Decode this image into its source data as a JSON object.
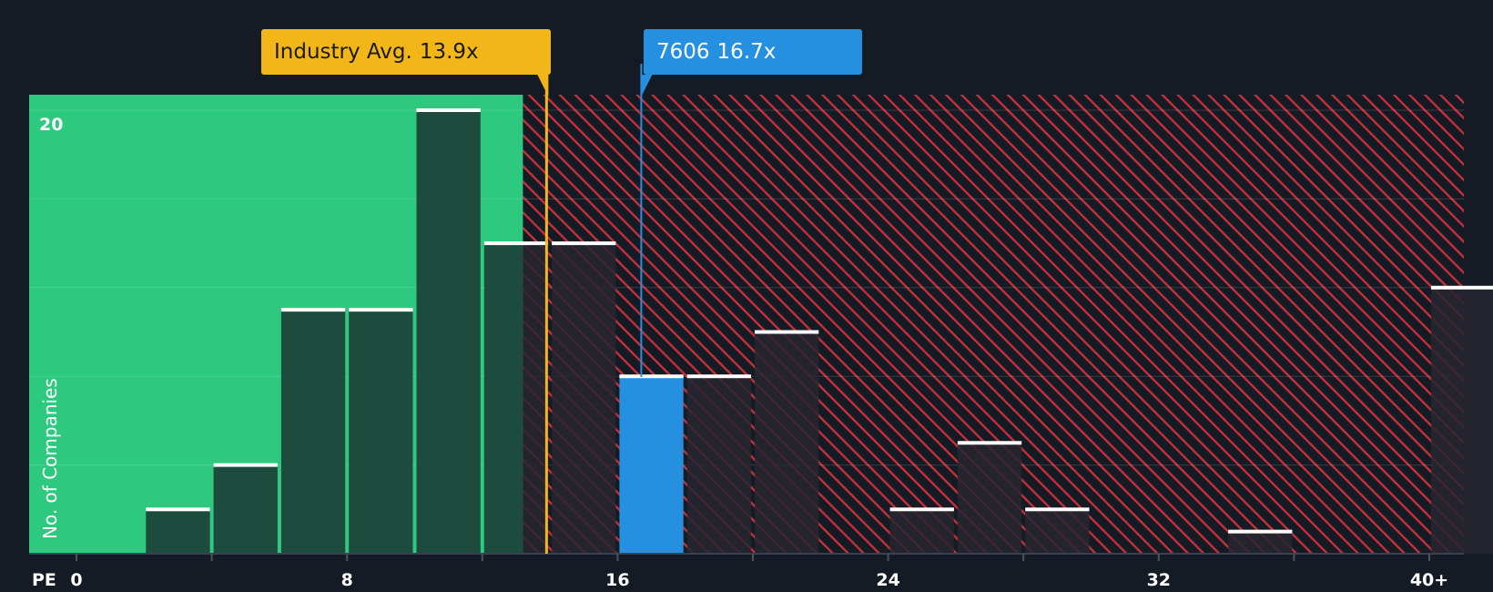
{
  "colors": {
    "background": "#151b24",
    "fair_zone": "#2dc97e",
    "fair_bar": "#1d4b3d",
    "over_zone_stripe": "#c4303a",
    "over_bar": "#262630",
    "company_bar": "#2590e0",
    "industry_line": "#f2b619",
    "bar_cap": "#ffffff",
    "axis_text": "#ffffff"
  },
  "callouts": {
    "industry": {
      "label": "Industry Avg.",
      "value": "13.9x"
    },
    "company": {
      "label": "7606",
      "value": "16.7x"
    }
  },
  "chart_data": {
    "type": "bar",
    "title": "",
    "xlabel": "PE",
    "ylabel": "No. of Companies",
    "x_ticks": [
      "0",
      "8",
      "16",
      "24",
      "32",
      "40+"
    ],
    "x_tick_values": [
      0,
      8,
      16,
      24,
      32,
      40
    ],
    "y_ticks": [
      "20"
    ],
    "y_tick_values": [
      20
    ],
    "xlim": [
      0,
      40
    ],
    "ylim": [
      0,
      20
    ],
    "bin_width": 2,
    "bars": [
      {
        "x_start": 2,
        "value": 2,
        "highlight": false
      },
      {
        "x_start": 4,
        "value": 4,
        "highlight": false
      },
      {
        "x_start": 6,
        "value": 11,
        "highlight": false
      },
      {
        "x_start": 8,
        "value": 11,
        "highlight": false
      },
      {
        "x_start": 10,
        "value": 20,
        "highlight": false
      },
      {
        "x_start": 12,
        "value": 14,
        "highlight": false
      },
      {
        "x_start": 14,
        "value": 14,
        "highlight": false
      },
      {
        "x_start": 16,
        "value": 8,
        "highlight": true
      },
      {
        "x_start": 18,
        "value": 8,
        "highlight": false
      },
      {
        "x_start": 20,
        "value": 10,
        "highlight": false
      },
      {
        "x_start": 24,
        "value": 2,
        "highlight": false
      },
      {
        "x_start": 26,
        "value": 5,
        "highlight": false
      },
      {
        "x_start": 28,
        "value": 2,
        "highlight": false
      },
      {
        "x_start": 34,
        "value": 1,
        "highlight": false
      },
      {
        "x_start": 40,
        "value": 12,
        "highlight": false
      }
    ],
    "industry_avg": 13.9,
    "company_value": 16.7,
    "company_name": "7606",
    "fair_zone_end": 13.2
  }
}
